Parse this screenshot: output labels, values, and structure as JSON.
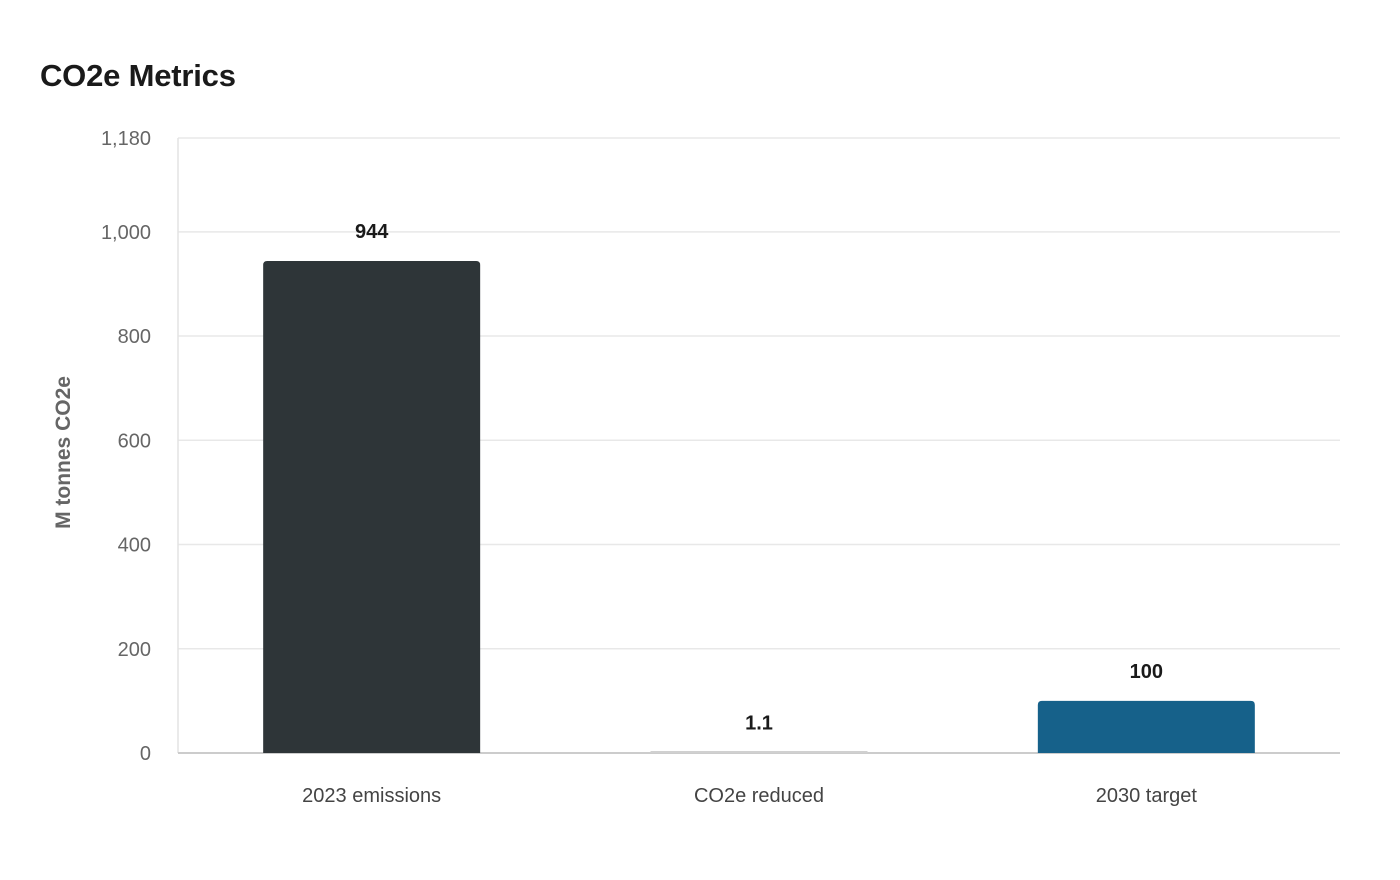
{
  "chart_data": {
    "type": "bar",
    "title": "CO2e Metrics",
    "xlabel": "",
    "ylabel": "M tonnes CO2e",
    "categories": [
      "2023 emissions",
      "CO2e reduced",
      "2030 target"
    ],
    "values": [
      944,
      1.1,
      100
    ],
    "data_labels": [
      "944",
      "1.1",
      "100"
    ],
    "bar_colors": [
      "#2e3538",
      "#d0d0d0",
      "#16618a"
    ],
    "ylim": [
      0,
      1180
    ],
    "yticks": [
      0,
      200,
      400,
      600,
      800,
      1000,
      1180
    ],
    "ytick_labels": [
      "0",
      "200",
      "400",
      "600",
      "800",
      "1,000",
      "1,180"
    ],
    "grid": true,
    "legend": "none"
  }
}
